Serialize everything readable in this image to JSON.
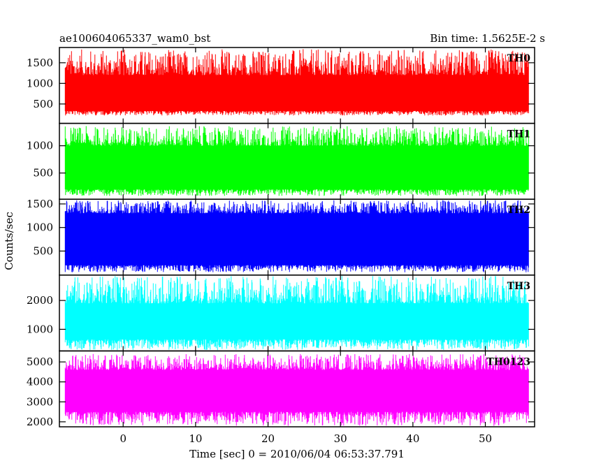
{
  "chart_data": {
    "type": "line",
    "title_left": "ae100604065337_wam0_bst",
    "title_right": "Bin time: 1.5625E-2 s",
    "xlabel": "Time [sec] 0 = 2010/06/04 06:53:37.791",
    "ylabel": "Counts/sec",
    "xlim": [
      -8.8,
      56.8
    ],
    "x_ticks": [
      0,
      10,
      20,
      30,
      40,
      50
    ],
    "x_tick_labels": [
      "0",
      "10",
      "20",
      "30",
      "40",
      "50"
    ],
    "data_range": [
      -8.0,
      56.0
    ],
    "bin_time": 0.015625,
    "grid": false,
    "panels": [
      {
        "name": "TH0",
        "color": "#ff0000",
        "ylim": [
          30,
          1870
        ],
        "yticks": [
          500,
          1000,
          1500
        ],
        "ytick_labels": [
          "500",
          "1000",
          "1500"
        ],
        "level": {
          "min": 220,
          "low": 330,
          "high": 1200,
          "max": 1830
        }
      },
      {
        "name": "TH1",
        "color": "#00ff00",
        "ylim": [
          20,
          1410
        ],
        "yticks": [
          500,
          1000
        ],
        "ytick_labels": [
          "500",
          "1000"
        ],
        "level": {
          "min": 80,
          "low": 200,
          "high": 1000,
          "max": 1360
        }
      },
      {
        "name": "TH2",
        "color": "#0000ff",
        "ylim": [
          -10,
          1600
        ],
        "yticks": [
          500,
          1000,
          1500
        ],
        "ytick_labels": [
          "500",
          "1000",
          "1500"
        ],
        "level": {
          "min": 50,
          "low": 200,
          "high": 1300,
          "max": 1580
        }
      },
      {
        "name": "TH3",
        "color": "#00ffff",
        "ylim": [
          250,
          2880
        ],
        "yticks": [
          1000,
          2000
        ],
        "ytick_labels": [
          "1000",
          "2000"
        ],
        "level": {
          "min": 280,
          "low": 650,
          "high": 1900,
          "max": 2850
        }
      },
      {
        "name": "TH0123",
        "color": "#ff00ff",
        "ylim": [
          1750,
          5550
        ],
        "yticks": [
          2000,
          3000,
          4000,
          5000
        ],
        "ytick_labels": [
          "2000",
          "3000",
          "4000",
          "5000"
        ],
        "level": {
          "min": 1800,
          "low": 2500,
          "high": 4600,
          "max": 5400
        }
      }
    ]
  }
}
